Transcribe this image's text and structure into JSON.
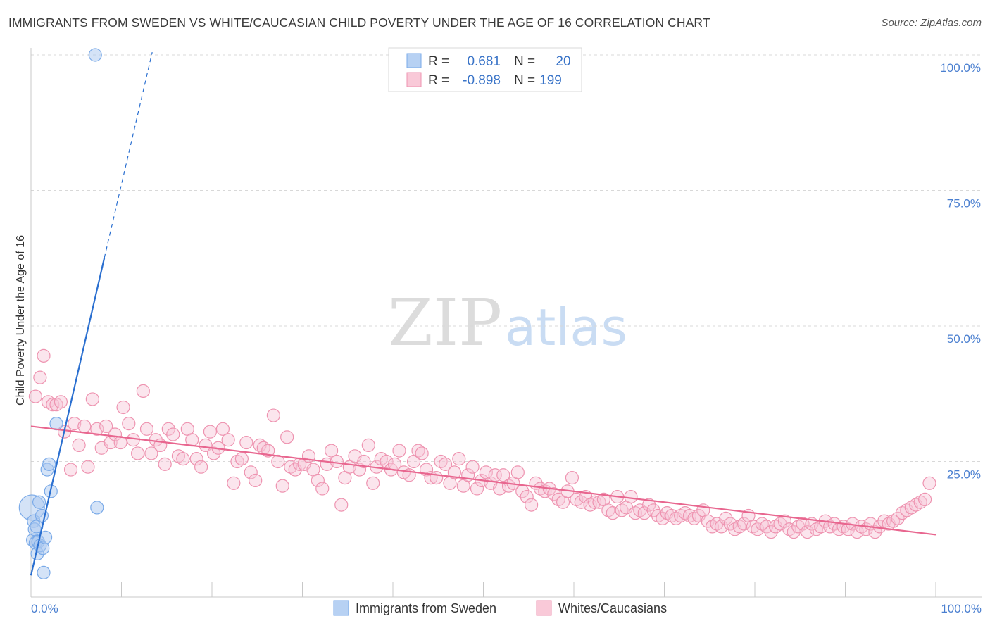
{
  "title": "IMMIGRANTS FROM SWEDEN VS WHITE/CAUCASIAN CHILD POVERTY UNDER THE AGE OF 16 CORRELATION CHART",
  "source": "Source: ZipAtlas.com",
  "watermark": {
    "zip": "ZIP",
    "atlas": "atlas"
  },
  "colors": {
    "blue": "#7aaae8",
    "blue_fill": "#a9c8f0",
    "blue_line": "#2a6fd0",
    "pink": "#ee93b0",
    "pink_fill": "#f7c6d6",
    "pink_line": "#e8668f",
    "axis_label": "#4a7fd0",
    "grid": "#d8d8d8"
  },
  "legend": {
    "rows": [
      {
        "r_label": "R =",
        "r_value": "0.681",
        "n_label": "N =",
        "n_value": "20",
        "series": "blue"
      },
      {
        "r_label": "R =",
        "r_value": "-0.898",
        "n_label": "N =",
        "n_value": "199",
        "series": "pink"
      }
    ]
  },
  "bottom_legend": [
    {
      "label": "Immigrants from Sweden",
      "series": "blue"
    },
    {
      "label": "Whites/Caucasians",
      "series": "pink"
    }
  ],
  "chart_data": {
    "type": "scatter",
    "title": "IMMIGRANTS FROM SWEDEN VS WHITE/CAUCASIAN CHILD POVERTY UNDER THE AGE OF 16 CORRELATION CHART",
    "xlabel": "",
    "ylabel": "Child Poverty Under the Age of 16",
    "xlim": [
      0,
      100
    ],
    "ylim": [
      0,
      100
    ],
    "x_tick_labels": [
      {
        "value": 0,
        "label": "0.0%"
      },
      {
        "value": 100,
        "label": "100.0%"
      }
    ],
    "y_tick_labels": [
      {
        "value": 25,
        "label": "25.0%"
      },
      {
        "value": 50,
        "label": "50.0%"
      },
      {
        "value": 75,
        "label": "75.0%"
      },
      {
        "value": 100,
        "label": "100.0%"
      }
    ],
    "grid": true,
    "series": [
      {
        "name": "Immigrants from Sweden",
        "color": "blue",
        "points": [
          [
            0.1,
            16.5
          ],
          [
            0.2,
            10.5
          ],
          [
            0.3,
            14.0
          ],
          [
            0.4,
            12.5
          ],
          [
            0.5,
            10.0
          ],
          [
            0.6,
            13.0
          ],
          [
            0.7,
            8.0
          ],
          [
            0.8,
            10.2
          ],
          [
            0.9,
            17.5
          ],
          [
            1.0,
            9.5
          ],
          [
            1.2,
            15.0
          ],
          [
            1.3,
            9.0
          ],
          [
            1.4,
            4.5
          ],
          [
            1.6,
            11.0
          ],
          [
            1.8,
            23.5
          ],
          [
            2.0,
            24.5
          ],
          [
            2.2,
            19.5
          ],
          [
            2.8,
            32.0
          ],
          [
            7.3,
            16.5
          ],
          [
            7.1,
            100.0
          ]
        ],
        "regression": {
          "x": [
            0.0,
            8.1
          ],
          "y": [
            4.0,
            62.5
          ],
          "dashed_x": [
            8.1,
            13.4
          ],
          "dashed_y": [
            62.5,
            100.5
          ]
        }
      },
      {
        "name": "Whites/Caucasians",
        "color": "pink",
        "points": [
          [
            0.5,
            37.0
          ],
          [
            1.0,
            40.5
          ],
          [
            1.4,
            44.5
          ],
          [
            1.9,
            36.0
          ],
          [
            2.4,
            35.5
          ],
          [
            2.8,
            35.5
          ],
          [
            3.3,
            36.0
          ],
          [
            3.7,
            30.5
          ],
          [
            4.4,
            23.5
          ],
          [
            4.8,
            32.0
          ],
          [
            5.3,
            28.0
          ],
          [
            5.9,
            31.5
          ],
          [
            6.3,
            24.0
          ],
          [
            6.8,
            36.5
          ],
          [
            7.3,
            31.0
          ],
          [
            7.8,
            27.5
          ],
          [
            8.3,
            31.5
          ],
          [
            8.8,
            28.5
          ],
          [
            9.3,
            30.0
          ],
          [
            9.9,
            28.5
          ],
          [
            10.2,
            35.0
          ],
          [
            10.8,
            32.0
          ],
          [
            11.3,
            29.0
          ],
          [
            11.8,
            26.5
          ],
          [
            12.4,
            38.0
          ],
          [
            12.8,
            31.0
          ],
          [
            13.3,
            26.5
          ],
          [
            13.8,
            29.0
          ],
          [
            14.3,
            28.0
          ],
          [
            14.8,
            24.5
          ],
          [
            15.2,
            31.0
          ],
          [
            15.7,
            30.0
          ],
          [
            16.3,
            26.0
          ],
          [
            16.8,
            25.5
          ],
          [
            17.3,
            31.0
          ],
          [
            17.8,
            29.0
          ],
          [
            18.3,
            25.5
          ],
          [
            18.8,
            24.0
          ],
          [
            19.3,
            28.0
          ],
          [
            19.8,
            30.5
          ],
          [
            20.2,
            26.5
          ],
          [
            20.7,
            27.5
          ],
          [
            21.2,
            31.0
          ],
          [
            21.8,
            29.0
          ],
          [
            22.4,
            21.0
          ],
          [
            22.8,
            25.0
          ],
          [
            23.3,
            25.5
          ],
          [
            23.8,
            28.5
          ],
          [
            24.3,
            23.0
          ],
          [
            24.8,
            21.5
          ],
          [
            25.3,
            28.0
          ],
          [
            25.7,
            27.5
          ],
          [
            26.2,
            27.0
          ],
          [
            26.8,
            33.5
          ],
          [
            27.3,
            25.0
          ],
          [
            27.8,
            20.5
          ],
          [
            28.3,
            29.5
          ],
          [
            28.7,
            24.0
          ],
          [
            29.2,
            23.5
          ],
          [
            29.7,
            24.5
          ],
          [
            30.2,
            24.5
          ],
          [
            30.7,
            26.0
          ],
          [
            31.2,
            23.5
          ],
          [
            31.7,
            21.5
          ],
          [
            32.2,
            20.0
          ],
          [
            32.7,
            24.5
          ],
          [
            33.2,
            27.0
          ],
          [
            33.8,
            25.0
          ],
          [
            34.3,
            17.0
          ],
          [
            34.7,
            22.0
          ],
          [
            35.2,
            24.0
          ],
          [
            35.8,
            26.0
          ],
          [
            36.3,
            23.5
          ],
          [
            36.8,
            25.0
          ],
          [
            37.3,
            28.0
          ],
          [
            37.8,
            21.0
          ],
          [
            38.2,
            24.0
          ],
          [
            38.7,
            25.5
          ],
          [
            39.3,
            25.0
          ],
          [
            39.8,
            23.5
          ],
          [
            40.2,
            24.5
          ],
          [
            40.7,
            27.0
          ],
          [
            41.2,
            23.0
          ],
          [
            41.8,
            22.5
          ],
          [
            42.3,
            25.0
          ],
          [
            42.8,
            27.0
          ],
          [
            43.2,
            26.5
          ],
          [
            43.7,
            23.5
          ],
          [
            44.2,
            22.0
          ],
          [
            44.8,
            22.0
          ],
          [
            45.3,
            25.0
          ],
          [
            45.8,
            24.5
          ],
          [
            46.3,
            21.0
          ],
          [
            46.8,
            23.0
          ],
          [
            47.3,
            25.5
          ],
          [
            47.8,
            20.5
          ],
          [
            48.3,
            22.5
          ],
          [
            48.8,
            24.0
          ],
          [
            49.3,
            20.0
          ],
          [
            49.8,
            21.5
          ],
          [
            50.3,
            23.0
          ],
          [
            50.8,
            21.0
          ],
          [
            51.3,
            22.5
          ],
          [
            51.8,
            20.0
          ],
          [
            52.2,
            22.5
          ],
          [
            52.8,
            20.5
          ],
          [
            53.3,
            21.0
          ],
          [
            53.8,
            23.0
          ],
          [
            54.3,
            19.5
          ],
          [
            54.8,
            18.5
          ],
          [
            55.3,
            17.0
          ],
          [
            55.8,
            21.0
          ],
          [
            56.3,
            20.0
          ],
          [
            56.8,
            19.5
          ],
          [
            57.3,
            20.0
          ],
          [
            57.8,
            19.0
          ],
          [
            58.3,
            18.0
          ],
          [
            58.8,
            17.5
          ],
          [
            59.3,
            19.5
          ],
          [
            59.8,
            22.0
          ],
          [
            60.3,
            18.0
          ],
          [
            60.8,
            17.5
          ],
          [
            61.3,
            18.5
          ],
          [
            61.8,
            17.0
          ],
          [
            62.3,
            17.5
          ],
          [
            62.8,
            17.5
          ],
          [
            63.3,
            18.0
          ],
          [
            63.8,
            16.0
          ],
          [
            64.3,
            15.5
          ],
          [
            64.8,
            18.5
          ],
          [
            65.3,
            16.0
          ],
          [
            65.8,
            16.5
          ],
          [
            66.3,
            18.5
          ],
          [
            66.8,
            15.5
          ],
          [
            67.3,
            16.0
          ],
          [
            67.8,
            15.5
          ],
          [
            68.3,
            17.0
          ],
          [
            68.8,
            16.0
          ],
          [
            69.3,
            15.0
          ],
          [
            69.8,
            14.5
          ],
          [
            70.3,
            15.5
          ],
          [
            70.8,
            15.0
          ],
          [
            71.3,
            14.5
          ],
          [
            71.8,
            15.0
          ],
          [
            72.3,
            15.5
          ],
          [
            72.8,
            15.0
          ],
          [
            73.3,
            14.5
          ],
          [
            73.8,
            15.0
          ],
          [
            74.3,
            16.0
          ],
          [
            74.8,
            14.0
          ],
          [
            75.3,
            13.0
          ],
          [
            75.8,
            13.5
          ],
          [
            76.3,
            13.0
          ],
          [
            76.8,
            14.5
          ],
          [
            77.3,
            13.5
          ],
          [
            77.8,
            12.5
          ],
          [
            78.3,
            13.0
          ],
          [
            78.8,
            13.5
          ],
          [
            79.3,
            15.0
          ],
          [
            79.8,
            13.0
          ],
          [
            80.3,
            12.5
          ],
          [
            80.8,
            13.5
          ],
          [
            81.3,
            13.0
          ],
          [
            81.8,
            12.0
          ],
          [
            82.3,
            13.0
          ],
          [
            82.8,
            13.5
          ],
          [
            83.3,
            14.0
          ],
          [
            83.8,
            12.5
          ],
          [
            84.3,
            12.0
          ],
          [
            84.8,
            13.0
          ],
          [
            85.3,
            13.5
          ],
          [
            85.8,
            12.0
          ],
          [
            86.3,
            13.5
          ],
          [
            86.8,
            12.5
          ],
          [
            87.3,
            13.0
          ],
          [
            87.8,
            14.0
          ],
          [
            88.3,
            13.0
          ],
          [
            88.8,
            13.5
          ],
          [
            89.3,
            12.5
          ],
          [
            89.8,
            13.0
          ],
          [
            90.3,
            12.5
          ],
          [
            90.8,
            13.5
          ],
          [
            91.3,
            12.0
          ],
          [
            91.8,
            13.0
          ],
          [
            92.3,
            12.5
          ],
          [
            92.8,
            13.5
          ],
          [
            93.3,
            12.0
          ],
          [
            93.8,
            13.0
          ],
          [
            94.3,
            14.0
          ],
          [
            94.8,
            13.5
          ],
          [
            95.3,
            14.0
          ],
          [
            95.8,
            14.5
          ],
          [
            96.3,
            15.5
          ],
          [
            96.8,
            16.0
          ],
          [
            97.3,
            16.5
          ],
          [
            97.8,
            17.0
          ],
          [
            98.3,
            17.5
          ],
          [
            98.8,
            18.0
          ],
          [
            99.3,
            21.0
          ]
        ],
        "regression": {
          "x": [
            0.0,
            100.0
          ],
          "y": [
            31.5,
            11.5
          ]
        }
      }
    ]
  }
}
